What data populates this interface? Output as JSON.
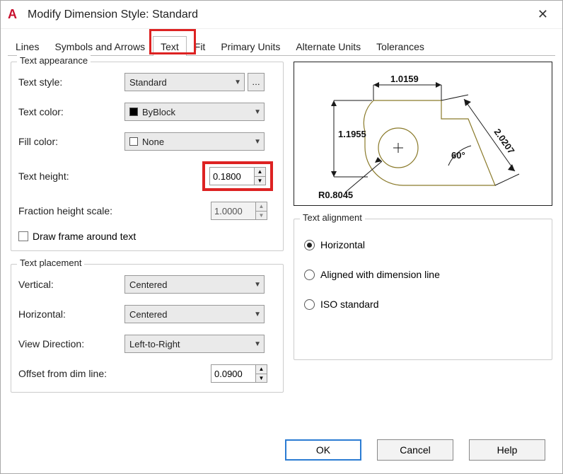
{
  "window": {
    "title": "Modify Dimension Style: Standard",
    "app_icon_letter": "A",
    "app_icon_color": "#c8102e"
  },
  "tabs": {
    "items": [
      "Lines",
      "Symbols and Arrows",
      "Text",
      "Fit",
      "Primary Units",
      "Alternate Units",
      "Tolerances"
    ],
    "active_index": 2,
    "highlight_index": 2
  },
  "text_appearance": {
    "legend": "Text appearance",
    "style_label": "Text style:",
    "style_value": "Standard",
    "color_label": "Text color:",
    "color_value": "ByBlock",
    "color_swatch": "#000000",
    "fill_label": "Fill color:",
    "fill_value": "None",
    "height_label": "Text height:",
    "height_value": "0.1800",
    "fraction_label": "Fraction height scale:",
    "fraction_value": "1.0000",
    "draw_frame_label": "Draw frame around text",
    "draw_frame_checked": false,
    "height_highlight_color": "#d22"
  },
  "text_placement": {
    "legend": "Text placement",
    "vertical_label": "Vertical:",
    "vertical_value": "Centered",
    "horizontal_label": "Horizontal:",
    "horizontal_value": "Centered",
    "viewdir_label": "View Direction:",
    "viewdir_value": "Left-to-Right",
    "offset_label": "Offset from dim line:",
    "offset_value": "0.0900"
  },
  "text_alignment": {
    "legend": "Text alignment",
    "options": [
      "Horizontal",
      "Aligned with dimension line",
      "ISO standard"
    ],
    "selected_index": 0
  },
  "preview": {
    "dim_top": "1.0159",
    "dim_left": "1.1955",
    "dim_right": "2.0207",
    "angle": "60°",
    "radius": "R0.8045",
    "outline_color": "#8a7a2a",
    "dim_color": "#1a1a1a",
    "text_color": "#111111"
  },
  "buttons": {
    "ok": "OK",
    "cancel": "Cancel",
    "help": "Help"
  }
}
